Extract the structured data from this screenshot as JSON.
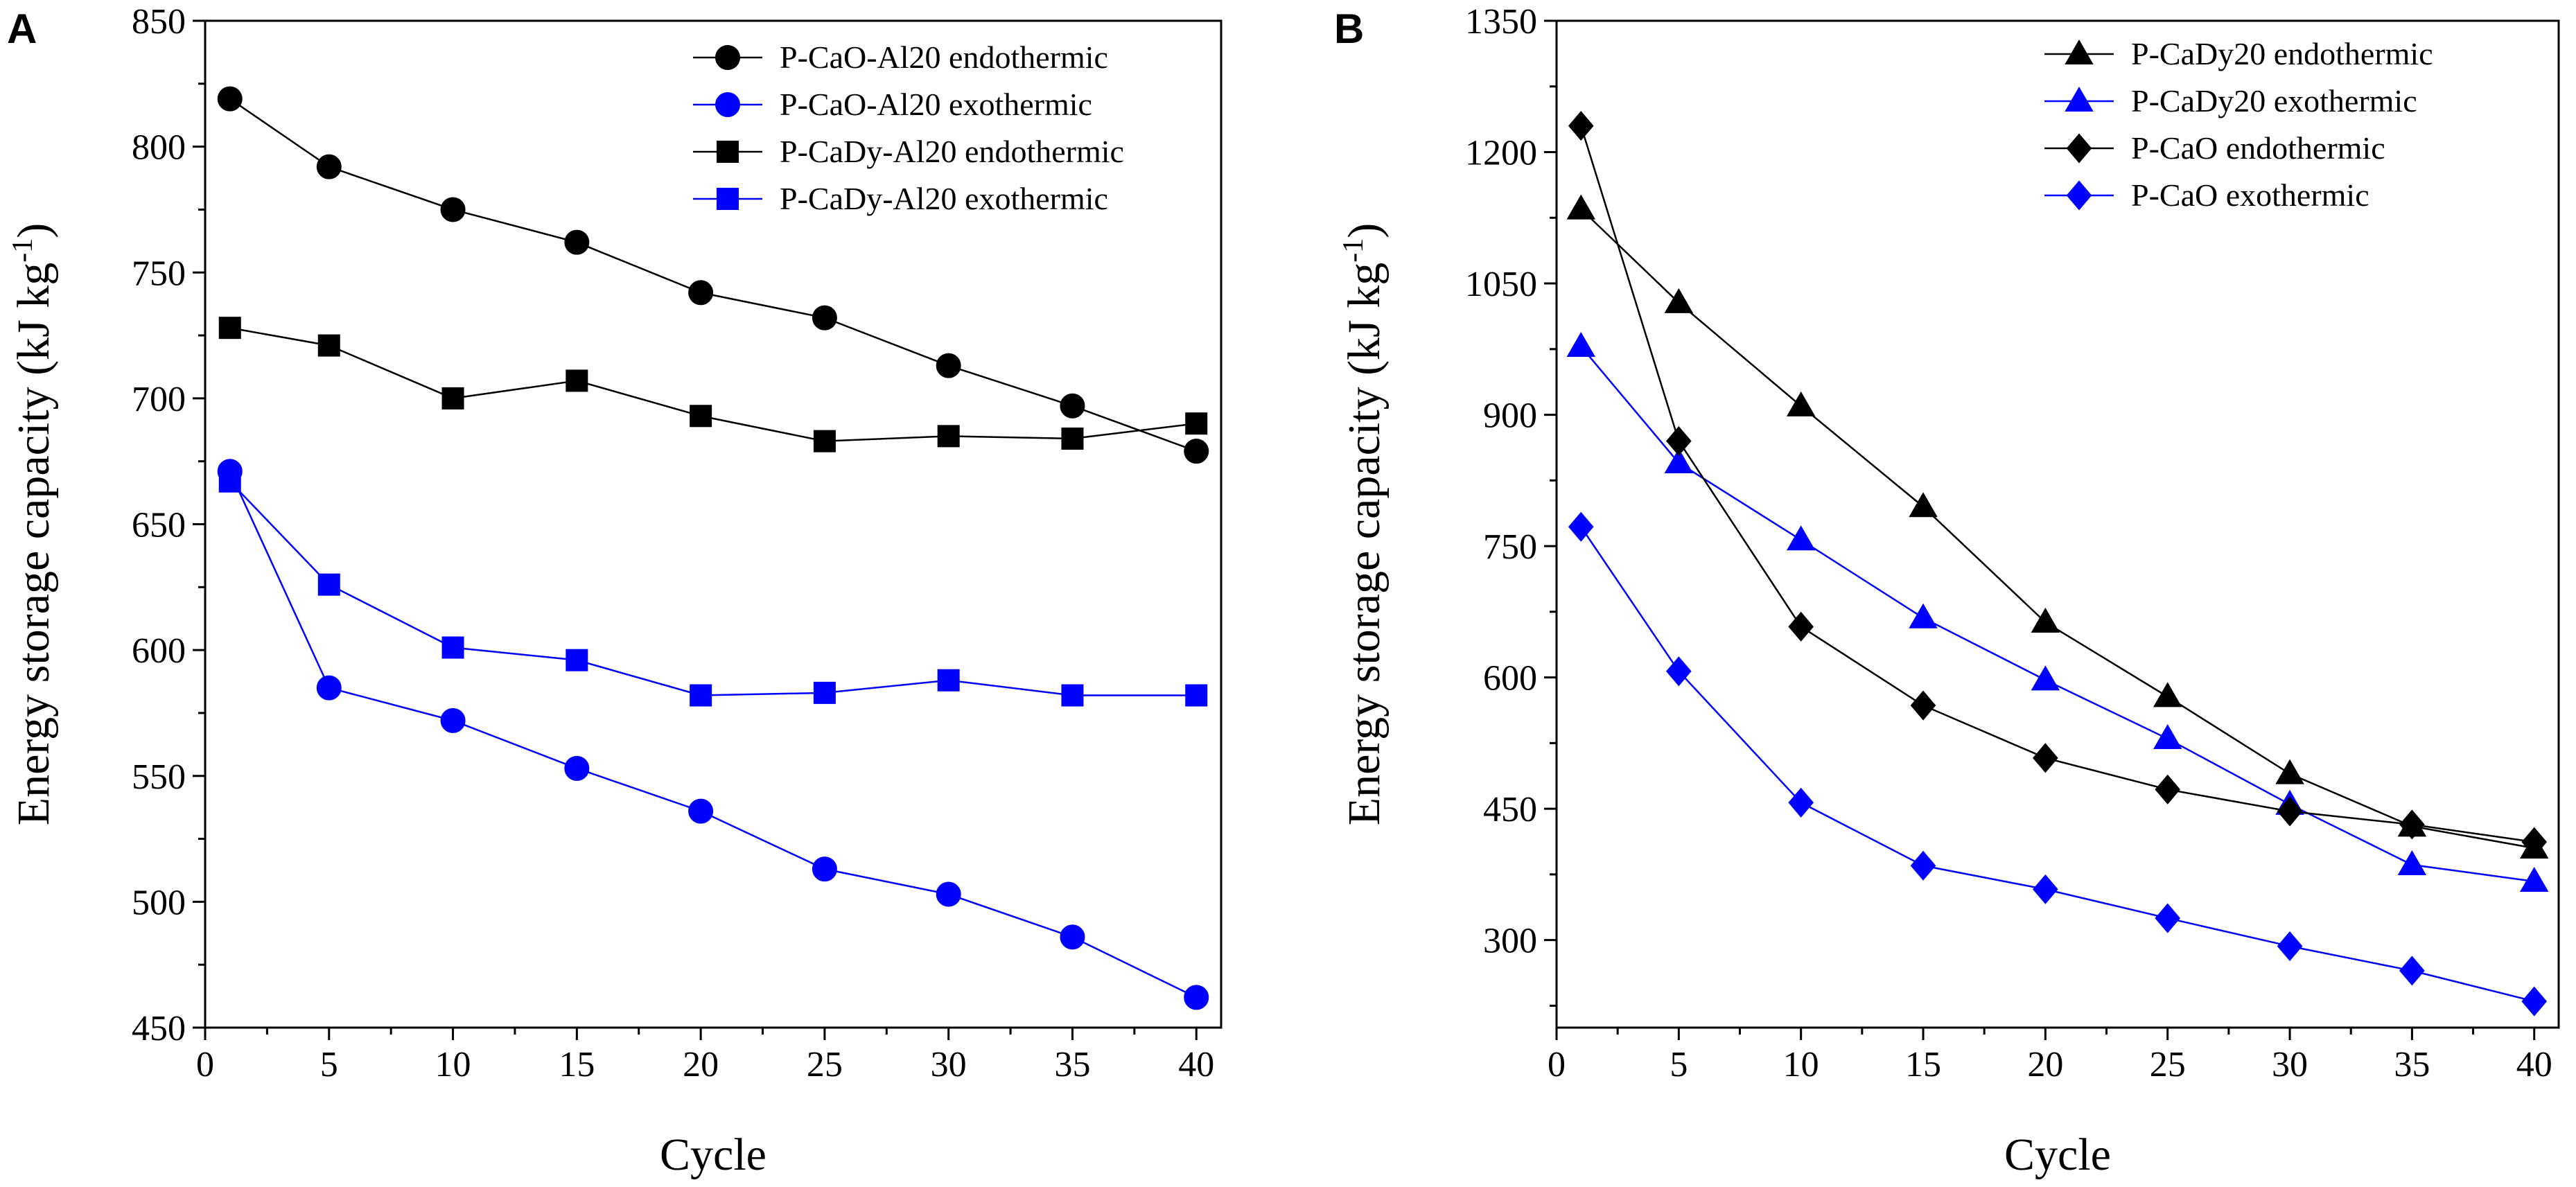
{
  "figure": {
    "description_title": "Energy storage capacity vs cycle"
  },
  "colors": {
    "black": "#000000",
    "blue": "#0000ff",
    "grid": "#000000"
  },
  "chart_data": [
    {
      "panel_label": "A",
      "type": "line",
      "xlabel": "Cycle",
      "ylabel": "Energy storage capacity (kJ kg",
      "ylabel_sup": "-1",
      "ylabel_close": ")",
      "xlim": [
        0,
        41
      ],
      "ylim": [
        450,
        850
      ],
      "xticks": [
        0,
        5,
        10,
        15,
        20,
        25,
        30,
        35,
        40
      ],
      "yticks": [
        450,
        500,
        550,
        600,
        650,
        700,
        750,
        800,
        850
      ],
      "legend_position": "top-right",
      "series": [
        {
          "name": "P-CaO-Al20 endothermic",
          "color": "#000000",
          "marker": "circle",
          "x": [
            1,
            5,
            10,
            15,
            20,
            25,
            30,
            35,
            40
          ],
          "y": [
            819,
            792,
            775,
            762,
            742,
            732,
            713,
            697,
            679
          ]
        },
        {
          "name": "P-CaO-Al20 exothermic",
          "color": "#0000ff",
          "marker": "circle",
          "x": [
            1,
            5,
            10,
            15,
            20,
            25,
            30,
            35,
            40
          ],
          "y": [
            671,
            585,
            572,
            553,
            536,
            513,
            503,
            486,
            462
          ]
        },
        {
          "name": "P-CaDy-Al20 endothermic",
          "color": "#000000",
          "marker": "square",
          "x": [
            1,
            5,
            10,
            15,
            20,
            25,
            30,
            35,
            40
          ],
          "y": [
            728,
            721,
            700,
            707,
            693,
            683,
            685,
            684,
            690
          ]
        },
        {
          "name": "P-CaDy-Al20 exothermic",
          "color": "#0000ff",
          "marker": "square",
          "x": [
            1,
            5,
            10,
            15,
            20,
            25,
            30,
            35,
            40
          ],
          "y": [
            667,
            626,
            601,
            596,
            582,
            583,
            588,
            582,
            582
          ]
        }
      ]
    },
    {
      "panel_label": "B",
      "type": "line",
      "xlabel": "Cycle",
      "ylabel": "Energy storage capacity (kJ kg",
      "ylabel_sup": "-1",
      "ylabel_close": ")",
      "xlim": [
        0,
        41
      ],
      "ylim": [
        200,
        1350
      ],
      "xticks": [
        0,
        5,
        10,
        15,
        20,
        25,
        30,
        35,
        40
      ],
      "yticks": [
        300,
        450,
        600,
        750,
        900,
        1050,
        1200,
        1350
      ],
      "legend_position": "top-right",
      "series": [
        {
          "name": "P-CaDy20 endothermic",
          "color": "#000000",
          "marker": "triangle",
          "x": [
            1,
            5,
            10,
            15,
            20,
            25,
            30,
            35,
            40
          ],
          "y": [
            1135,
            1028,
            910,
            795,
            663,
            578,
            490,
            430,
            405
          ]
        },
        {
          "name": "P-CaDy20 exothermic",
          "color": "#0000ff",
          "marker": "triangle",
          "x": [
            1,
            5,
            10,
            15,
            20,
            25,
            30,
            35,
            40
          ],
          "y": [
            978,
            845,
            757,
            668,
            597,
            530,
            455,
            386,
            367
          ]
        },
        {
          "name": "P-CaO endothermic",
          "color": "#000000",
          "marker": "diamond",
          "x": [
            1,
            5,
            10,
            15,
            20,
            25,
            30,
            35,
            40
          ],
          "y": [
            1230,
            870,
            658,
            568,
            508,
            472,
            447,
            432,
            412
          ]
        },
        {
          "name": "P-CaO exothermic",
          "color": "#0000ff",
          "marker": "diamond",
          "x": [
            1,
            5,
            10,
            15,
            20,
            25,
            30,
            35,
            40
          ],
          "y": [
            772,
            607,
            457,
            385,
            358,
            325,
            293,
            265,
            230
          ]
        }
      ]
    }
  ]
}
